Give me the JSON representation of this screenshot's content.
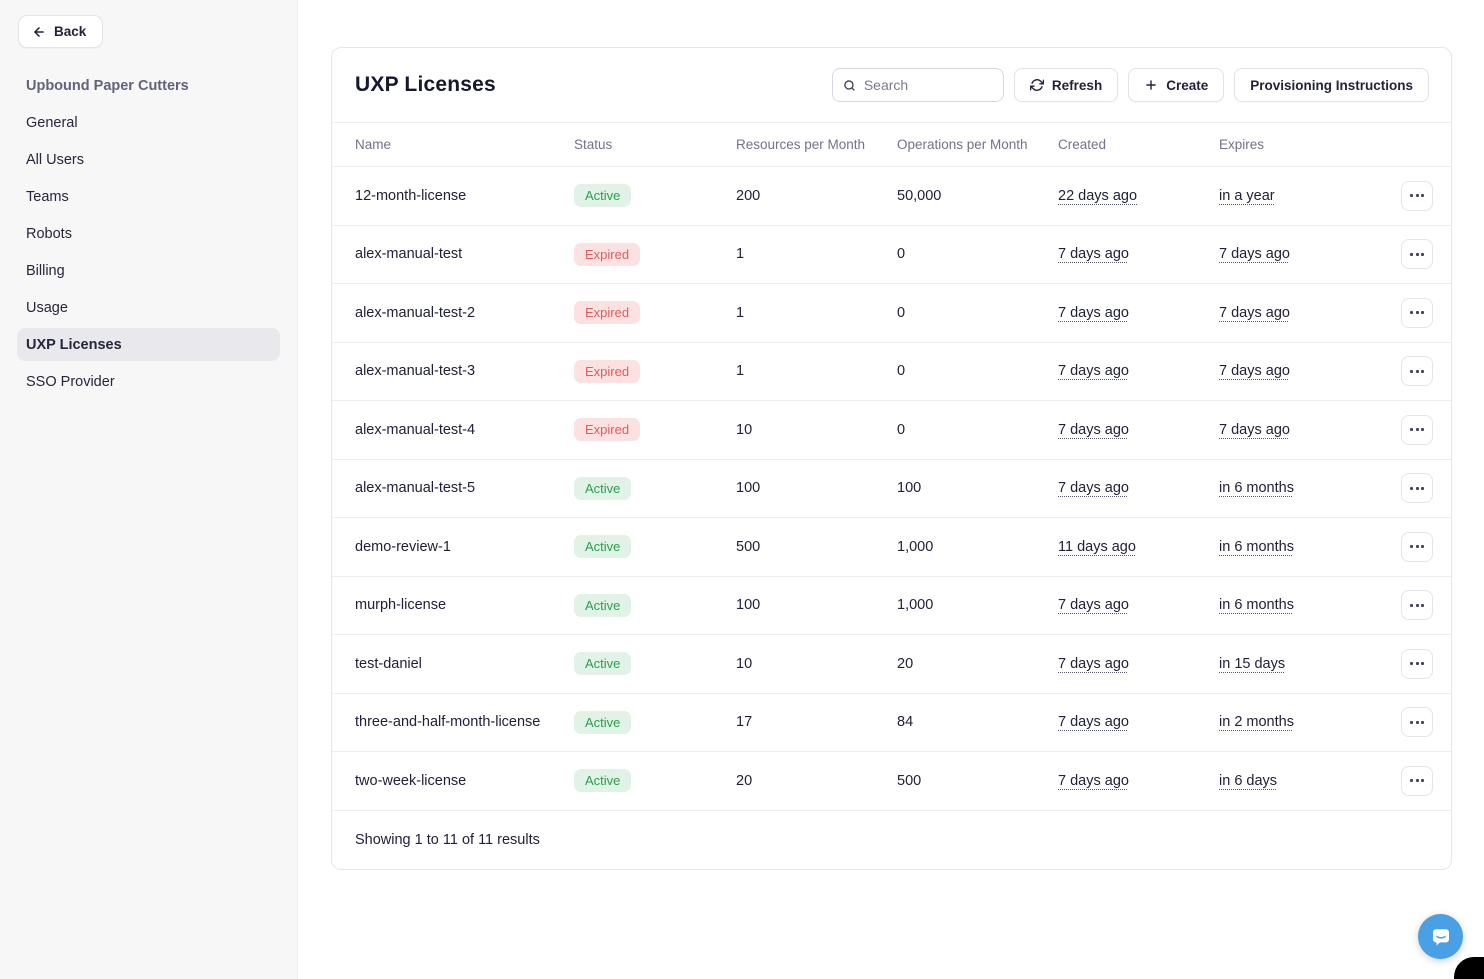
{
  "back": {
    "label": "Back"
  },
  "sidebar": {
    "title": "Upbound Paper Cutters",
    "items": [
      {
        "label": "General",
        "active": false
      },
      {
        "label": "All Users",
        "active": false
      },
      {
        "label": "Teams",
        "active": false
      },
      {
        "label": "Robots",
        "active": false
      },
      {
        "label": "Billing",
        "active": false
      },
      {
        "label": "Usage",
        "active": false
      },
      {
        "label": "UXP Licenses",
        "active": true
      },
      {
        "label": "SSO Provider",
        "active": false
      }
    ]
  },
  "main": {
    "title": "UXP Licenses",
    "search": {
      "placeholder": "Search",
      "value": ""
    },
    "buttons": {
      "refresh": "Refresh",
      "create": "Create",
      "provisioning": "Provisioning Instructions"
    },
    "table": {
      "columns": [
        "Name",
        "Status",
        "Resources per Month",
        "Operations per Month",
        "Created",
        "Expires"
      ],
      "rows": [
        {
          "name": "12-month-license",
          "status": "Active",
          "resources": "200",
          "operations": "50,000",
          "created": "22 days ago",
          "expires": "in a year"
        },
        {
          "name": "alex-manual-test",
          "status": "Expired",
          "resources": "1",
          "operations": "0",
          "created": "7 days ago",
          "expires": "7 days ago"
        },
        {
          "name": "alex-manual-test-2",
          "status": "Expired",
          "resources": "1",
          "operations": "0",
          "created": "7 days ago",
          "expires": "7 days ago"
        },
        {
          "name": "alex-manual-test-3",
          "status": "Expired",
          "resources": "1",
          "operations": "0",
          "created": "7 days ago",
          "expires": "7 days ago"
        },
        {
          "name": "alex-manual-test-4",
          "status": "Expired",
          "resources": "10",
          "operations": "0",
          "created": "7 days ago",
          "expires": "7 days ago"
        },
        {
          "name": "alex-manual-test-5",
          "status": "Active",
          "resources": "100",
          "operations": "100",
          "created": "7 days ago",
          "expires": "in 6 months"
        },
        {
          "name": "demo-review-1",
          "status": "Active",
          "resources": "500",
          "operations": "1,000",
          "created": "11 days ago",
          "expires": "in 6 months"
        },
        {
          "name": "murph-license",
          "status": "Active",
          "resources": "100",
          "operations": "1,000",
          "created": "7 days ago",
          "expires": "in 6 months"
        },
        {
          "name": "test-daniel",
          "status": "Active",
          "resources": "10",
          "operations": "20",
          "created": "7 days ago",
          "expires": "in 15 days"
        },
        {
          "name": "three-and-half-month-license",
          "status": "Active",
          "resources": "17",
          "operations": "84",
          "created": "7 days ago",
          "expires": "in 2 months"
        },
        {
          "name": "two-week-license",
          "status": "Active",
          "resources": "20",
          "operations": "500",
          "created": "7 days ago",
          "expires": "in 6 days"
        }
      ],
      "footer": "Showing 1 to 11 of 11 results"
    }
  },
  "colors": {
    "active_badge_bg": "#e1f2e6",
    "active_badge_text": "#2e9e4e",
    "expired_badge_bg": "#fbe1e1",
    "expired_badge_text": "#e05c5c",
    "sidebar_title_text": "#62627e",
    "chat_bubble_blue": "#4aa0e5"
  }
}
